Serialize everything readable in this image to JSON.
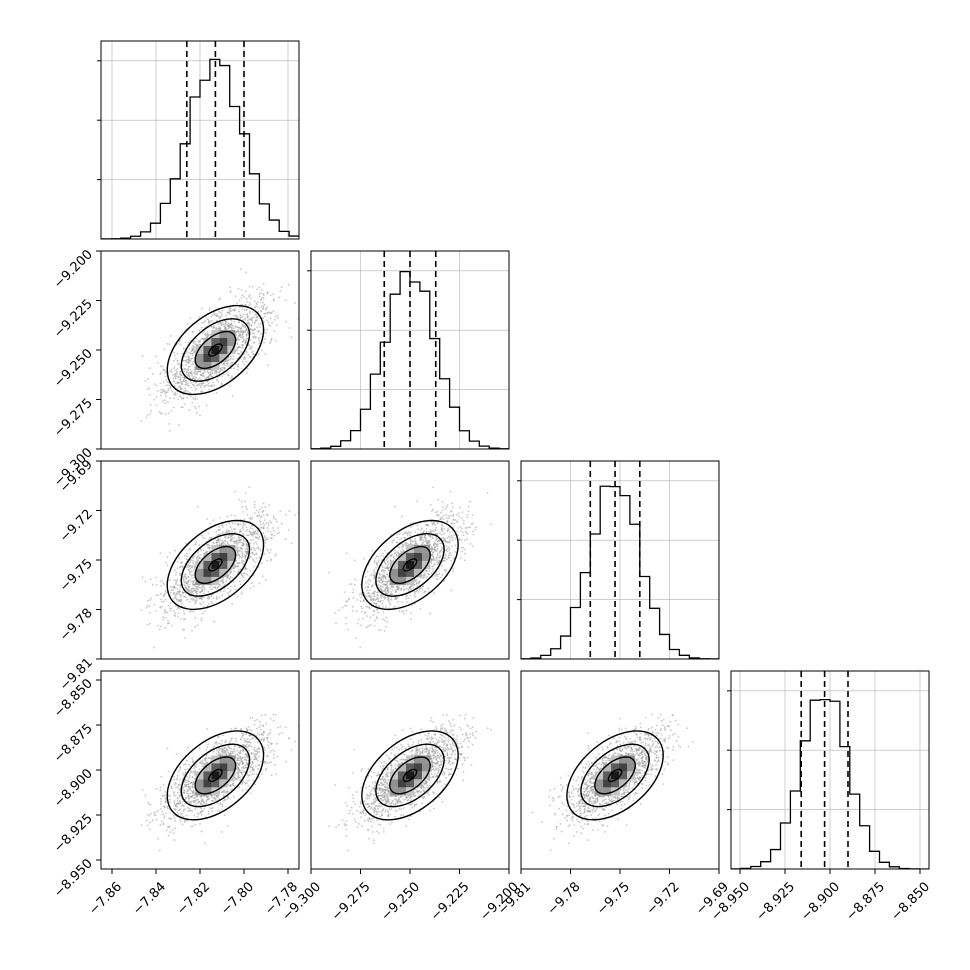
{
  "chart_data": {
    "type": "corner",
    "grid": true,
    "params": [
      {
        "xlim": [
          -7.865,
          -7.775
        ],
        "ticks": [
          -7.86,
          -7.84,
          -7.82,
          -7.8,
          -7.78
        ],
        "tick_labels": [
          "−7.86",
          "−7.84",
          "−7.82",
          "−7.80",
          "−7.78"
        ],
        "median": -7.813,
        "q16": -7.826,
        "q84": -7.8,
        "sigma": 0.0125
      },
      {
        "xlim": [
          -9.3,
          -9.2
        ],
        "ticks": [
          -9.3,
          -9.275,
          -9.25,
          -9.225,
          -9.2
        ],
        "tick_labels": [
          "−9.300",
          "−9.275",
          "−9.250",
          "−9.225",
          "−9.200"
        ],
        "median": -9.25,
        "q16": -9.263,
        "q84": -9.237,
        "sigma": 0.013
      },
      {
        "xlim": [
          -9.81,
          -9.69
        ],
        "ticks": [
          -9.81,
          -9.78,
          -9.75,
          -9.72,
          -9.69
        ],
        "tick_labels": [
          "−9.81",
          "−9.78",
          "−9.75",
          "−9.72",
          "−9.69"
        ],
        "median": -9.753,
        "q16": -9.768,
        "q84": -9.738,
        "sigma": 0.015
      },
      {
        "xlim": [
          -8.955,
          -8.845
        ],
        "ticks": [
          -8.95,
          -8.925,
          -8.9,
          -8.875,
          -8.85
        ],
        "tick_labels": [
          "−8.950",
          "−8.925",
          "−8.900",
          "−8.875",
          "−8.850"
        ],
        "median": -8.903,
        "q16": -8.916,
        "q84": -8.89,
        "sigma": 0.013
      }
    ],
    "correlation": 0.72,
    "style": {
      "line": "#000000",
      "grid": "#b0b0b0",
      "points": "#9a9a9a"
    }
  }
}
